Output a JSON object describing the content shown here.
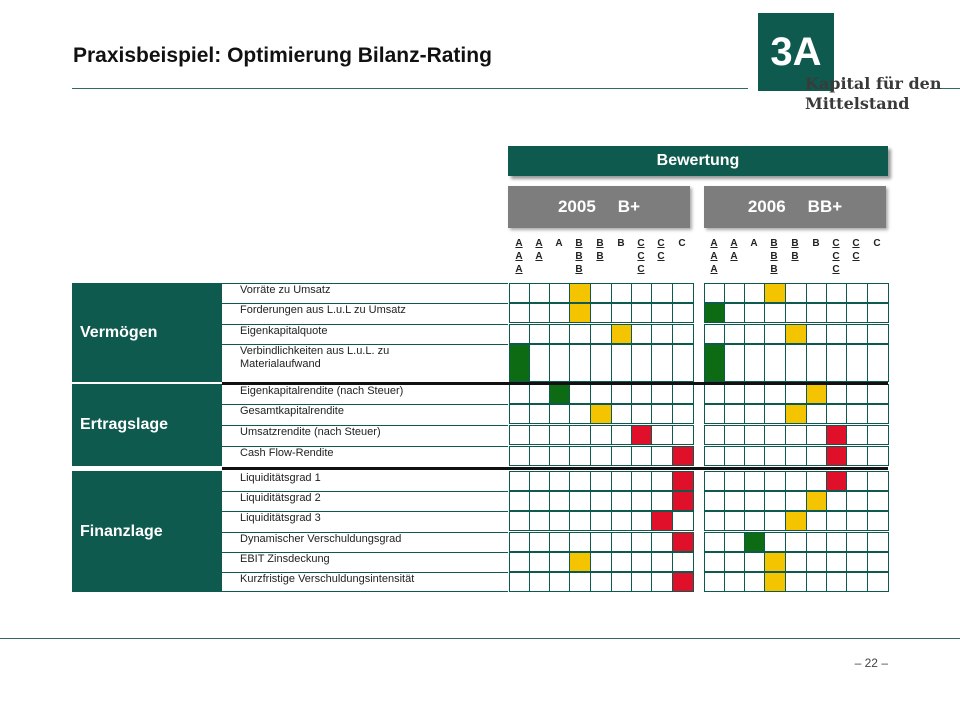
{
  "title": "Praxisbeispiel: Optimierung Bilanz-Rating",
  "logo": {
    "mark": "3A",
    "line1": "Kapital für den",
    "line2": "Mittelstand"
  },
  "bewertung": "Bewertung",
  "years": [
    {
      "year": "2005",
      "rating": "B+"
    },
    {
      "year": "2006",
      "rating": "BB+"
    }
  ],
  "rating_columns": [
    "AAA",
    "AA",
    "A",
    "BBB",
    "BB",
    "B",
    "CCC",
    "CC",
    "C"
  ],
  "sections": [
    {
      "name": "Vermögen",
      "rows": [
        {
          "label": "Vorräte zu Umsatz",
          "y2005": 3,
          "c2005": "yellow",
          "y2006": 3,
          "c2006": "yellow"
        },
        {
          "label": "Forderungen aus L.u.L zu Umsatz",
          "y2005": 3,
          "c2005": "yellow",
          "y2006": 0,
          "c2006": "green"
        },
        {
          "label": "Eigenkapitalquote",
          "y2005": 5,
          "c2005": "yellow",
          "y2006": 4,
          "c2006": "yellow"
        },
        {
          "label": "Verbindlichkeiten aus L.u.L. zu Materialaufwand",
          "y2005": 0,
          "c2005": "green",
          "y2006": 0,
          "c2006": "green"
        }
      ]
    },
    {
      "name": "Ertragslage",
      "rows": [
        {
          "label": "Eigenkapitalrendite (nach Steuer)",
          "y2005": 2,
          "c2005": "green",
          "y2006": 5,
          "c2006": "yellow"
        },
        {
          "label": "Gesamtkapitalrendite",
          "y2005": 4,
          "c2005": "yellow",
          "y2006": 4,
          "c2006": "yellow"
        },
        {
          "label": "Umsatzrendite (nach Steuer)",
          "y2005": 6,
          "c2005": "red",
          "y2006": 6,
          "c2006": "red"
        },
        {
          "label": "Cash Flow-Rendite",
          "y2005": 8,
          "c2005": "red",
          "y2006": 6,
          "c2006": "red"
        }
      ]
    },
    {
      "name": "Finanzlage",
      "rows": [
        {
          "label": "Liquiditätsgrad 1",
          "y2005": 8,
          "c2005": "red",
          "y2006": 6,
          "c2006": "red"
        },
        {
          "label": "Liquiditätsgrad 2",
          "y2005": 8,
          "c2005": "red",
          "y2006": 5,
          "c2006": "yellow"
        },
        {
          "label": "Liquiditätsgrad 3",
          "y2005": 7,
          "c2005": "red",
          "y2006": 4,
          "c2006": "yellow"
        },
        {
          "label": "Dynamischer Verschuldungsgrad",
          "y2005": 8,
          "c2005": "red",
          "y2006": 2,
          "c2006": "green"
        },
        {
          "label": "EBIT Zinsdeckung",
          "y2005": 3,
          "c2005": "yellow",
          "y2006": 3,
          "c2006": "yellow"
        },
        {
          "label": "Kurzfristige Verschuldungsintensität",
          "y2005": 8,
          "c2005": "red",
          "y2006": 3,
          "c2006": "yellow"
        }
      ]
    }
  ],
  "page_number": "– 22 –"
}
